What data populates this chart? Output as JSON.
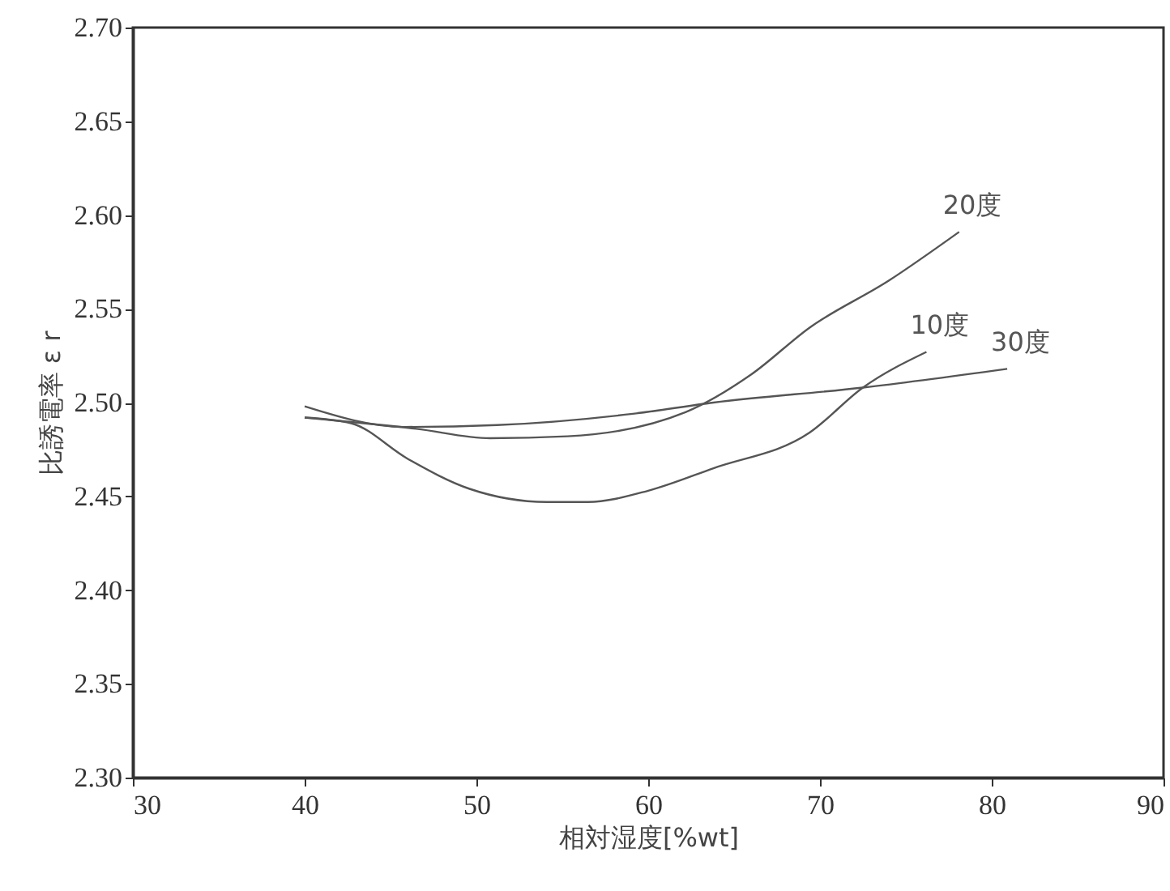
{
  "chart_data": {
    "type": "line",
    "xlabel": "相対湿度[%wt]",
    "ylabel": "比誘電率 ε r",
    "xlim": [
      30,
      90
    ],
    "xticks": [
      30,
      40,
      50,
      60,
      70,
      80,
      90
    ],
    "ylim": [
      2.3,
      2.7
    ],
    "yticks": [
      {
        "value": 2.3,
        "label": "2.30"
      },
      {
        "value": 2.35,
        "label": "2.35"
      },
      {
        "value": 2.4,
        "label": "2.40"
      },
      {
        "value": 2.45,
        "label": "2.45"
      },
      {
        "value": 2.5,
        "label": "2.50"
      },
      {
        "value": 2.55,
        "label": "2.55"
      },
      {
        "value": 2.6,
        "label": "2.60"
      },
      {
        "value": 2.65,
        "label": "2.65"
      },
      {
        "value": 2.7,
        "label": "2.70"
      }
    ],
    "grid": false,
    "marker": "none",
    "line_style": "solid",
    "series": [
      {
        "name": "20度",
        "color": "#555555",
        "x": [
          40,
          46.5,
          50.8,
          55.3,
          62.2,
          66,
          69.4,
          74,
          78.1
        ],
        "values": [
          2.492,
          2.486,
          2.481,
          2.482,
          2.495,
          2.515,
          2.54,
          2.565,
          2.591
        ]
      },
      {
        "name": "10度",
        "color": "#555555",
        "x": [
          40,
          42.7,
          46,
          49.6,
          54.1,
          56.5,
          60,
          63.8,
          69.4,
          72.5,
          76.2
        ],
        "values": [
          2.492,
          2.489,
          2.47,
          2.454,
          2.447,
          2.447,
          2.453,
          2.465,
          2.484,
          2.508,
          2.527
        ]
      },
      {
        "name": "30度",
        "color": "#555555",
        "x": [
          40,
          45.8,
          51.2,
          59.1,
          63.8,
          72.5,
          80.9
        ],
        "values": [
          2.498,
          2.487,
          2.488,
          2.494,
          2.5,
          2.508,
          2.518
        ]
      }
    ]
  }
}
